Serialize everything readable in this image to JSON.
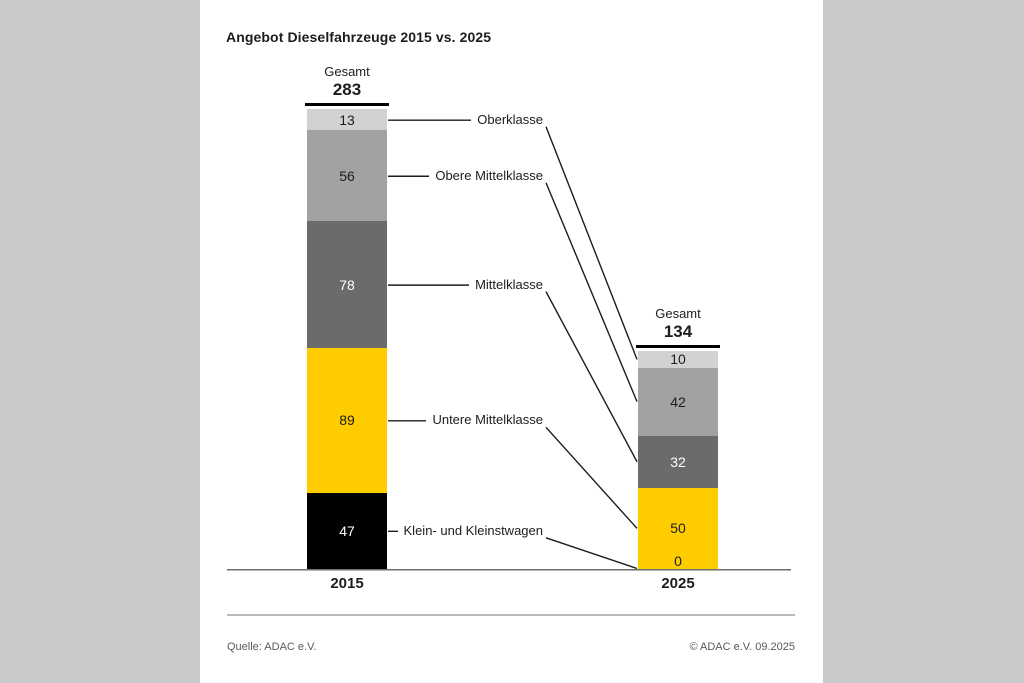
{
  "title": "Angebot Dieselfahrzeuge 2015 vs. 2025",
  "chart_data": {
    "type": "bar",
    "subtype": "stacked-comparison",
    "title": "Angebot Dieselfahrzeuge 2015 vs. 2025",
    "categories": [
      "2015",
      "2025"
    ],
    "total_label": "Gesamt",
    "totals": {
      "2015": 283,
      "2025": 134
    },
    "segments_top_to_bottom": true,
    "value_labels": "inside-segments",
    "segments": [
      {
        "label": "Oberklasse",
        "color": "#d2d2d2",
        "values": {
          "2015": 13,
          "2025": 10
        }
      },
      {
        "label": "Obere Mittelklasse",
        "color": "#a2a2a2",
        "values": {
          "2015": 56,
          "2025": 42
        }
      },
      {
        "label": "Mittelklasse",
        "color": "#6b6b6b",
        "values": {
          "2015": 78,
          "2025": 32
        }
      },
      {
        "label": "Untere Mittelklasse",
        "color": "#ffcc00",
        "values": {
          "2015": 89,
          "2025": 50
        }
      },
      {
        "label": "Klein- und Kleinstwagen",
        "color": "#000000",
        "values": {
          "2015": 47,
          "2025": 0
        }
      }
    ],
    "colors": {
      "accent_yellow": "#ffcc00",
      "axis": "#6e6e6e",
      "connector": "#1d1d1b",
      "text_dark": "#1d1d1b",
      "text_light": "#ffffff",
      "page_border": "#c9c9c9"
    },
    "legend_position": "callout-labels-between-bars",
    "grid": false
  },
  "footer": {
    "source": "Quelle: ADAC e.V.",
    "copyright": "© ADAC e.V. 09.2025"
  }
}
